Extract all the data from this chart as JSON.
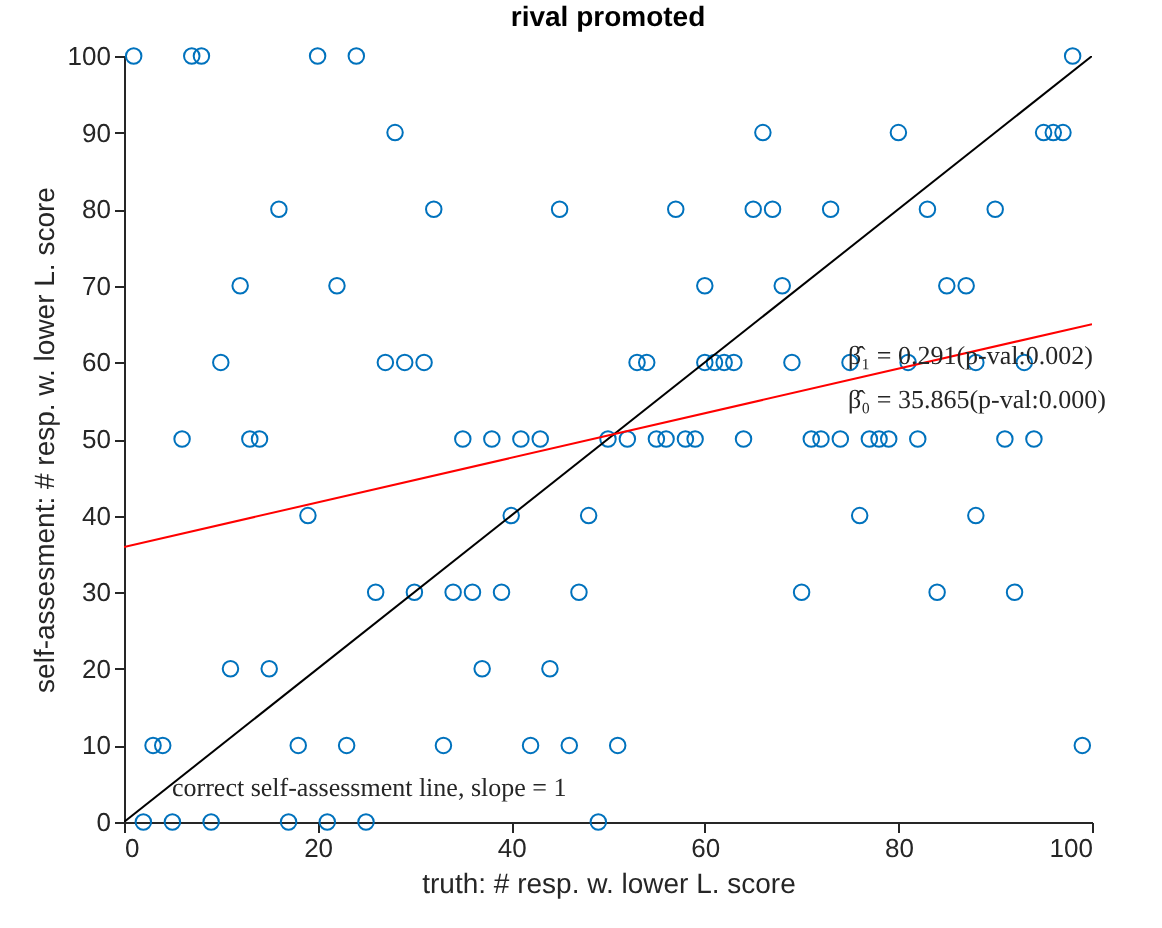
{
  "chart_data": {
    "type": "scatter",
    "title": "rival promoted",
    "xlabel": "truth: # resp. w. lower L. score",
    "ylabel": "self-assesment: # resp. w. lower L. score",
    "xlim": [
      0,
      100
    ],
    "xticks": [
      0,
      20,
      40,
      60,
      80,
      100
    ],
    "ylim": [
      0,
      100
    ],
    "yticks": [
      0,
      10,
      20,
      30,
      40,
      50,
      60,
      70,
      80,
      90,
      100
    ],
    "grid": false,
    "series": [
      {
        "marker": "circle",
        "color": "#0072bd",
        "x": [
          1,
          7,
          8,
          20,
          24,
          98,
          28,
          66,
          80,
          95,
          96,
          97,
          16,
          32,
          45,
          57,
          65,
          67,
          73,
          83,
          90,
          12,
          22,
          60,
          68,
          85,
          87,
          10,
          27,
          29,
          31,
          53,
          54,
          60,
          61,
          62,
          63,
          69,
          75,
          81,
          88,
          93,
          6,
          13,
          14,
          35,
          38,
          41,
          43,
          50,
          52,
          55,
          56,
          58,
          59,
          64,
          71,
          72,
          74,
          77,
          78,
          79,
          82,
          91,
          94,
          19,
          40,
          48,
          76,
          88,
          26,
          30,
          34,
          36,
          39,
          47,
          70,
          84,
          92,
          11,
          15,
          37,
          44,
          3,
          4,
          18,
          23,
          33,
          42,
          46,
          51,
          99,
          2,
          5,
          9,
          17,
          21,
          25,
          49
        ],
        "values": [
          100,
          100,
          100,
          100,
          100,
          100,
          90,
          90,
          90,
          90,
          90,
          90,
          80,
          80,
          80,
          80,
          80,
          80,
          80,
          80,
          80,
          70,
          70,
          70,
          70,
          70,
          70,
          60,
          60,
          60,
          60,
          60,
          60,
          60,
          60,
          60,
          60,
          60,
          60,
          60,
          60,
          60,
          50,
          50,
          50,
          50,
          50,
          50,
          50,
          50,
          50,
          50,
          50,
          50,
          50,
          50,
          50,
          50,
          50,
          50,
          50,
          50,
          50,
          50,
          50,
          40,
          40,
          40,
          40,
          40,
          30,
          30,
          30,
          30,
          30,
          30,
          30,
          30,
          30,
          20,
          20,
          20,
          20,
          10,
          10,
          10,
          10,
          10,
          10,
          10,
          10,
          10,
          0,
          0,
          0,
          0,
          0,
          0,
          0
        ]
      },
      {
        "type": "line",
        "color": "#000000",
        "x": [
          0,
          100
        ],
        "values": [
          0,
          100
        ]
      },
      {
        "type": "line",
        "color": "#ff0000",
        "x": [
          0,
          100
        ],
        "values": [
          35.9,
          65.0
        ]
      }
    ],
    "annotations": [
      "correct self-assessment line, slope = 1",
      "β̂₁ = 0.291(p-val:0.002)",
      "β̂₀ = 35.865(p-val:0.000)"
    ]
  }
}
